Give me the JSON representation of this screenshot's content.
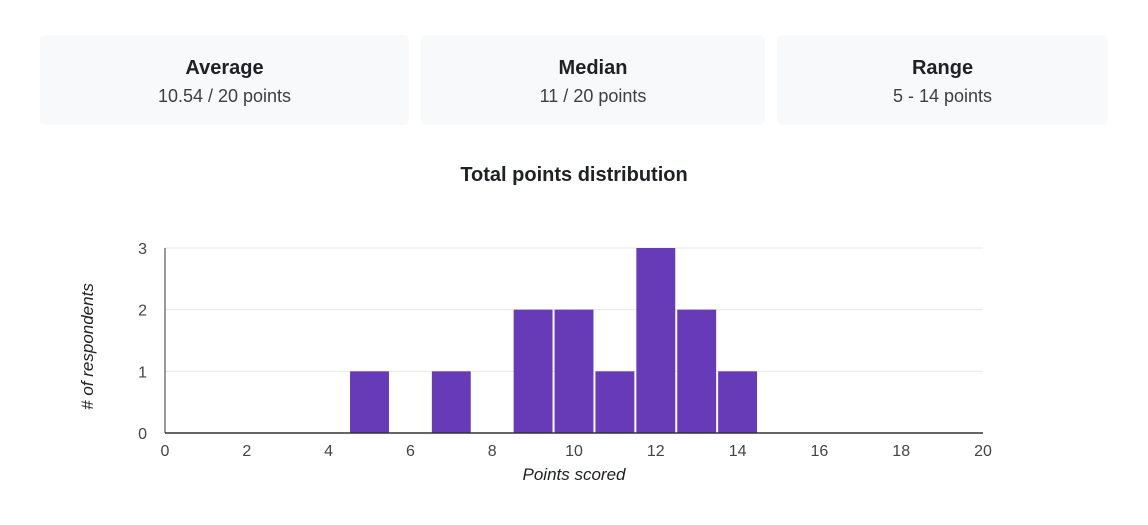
{
  "stats": {
    "average": {
      "label": "Average",
      "value": "10.54 / 20 points"
    },
    "median": {
      "label": "Median",
      "value": "11 / 20 points"
    },
    "range": {
      "label": "Range",
      "value": "5 - 14 points"
    }
  },
  "colors": {
    "bar": "#673ab7",
    "grid": "#e8e8e8",
    "axis": "#333333"
  },
  "chart_data": {
    "type": "bar",
    "title": "Total points distribution",
    "xlabel": "Points scored",
    "ylabel": "# of respondents",
    "xlim": [
      0,
      20
    ],
    "ylim": [
      0,
      3
    ],
    "x_ticks": [
      "0",
      "2",
      "4",
      "6",
      "8",
      "10",
      "12",
      "14",
      "16",
      "18",
      "20"
    ],
    "y_ticks": [
      "0",
      "1",
      "2",
      "3"
    ],
    "categories": [
      5,
      7,
      9,
      10,
      11,
      12,
      13,
      14
    ],
    "values": [
      1,
      1,
      2,
      2,
      1,
      3,
      2,
      1
    ],
    "grid": true,
    "legend": "none"
  }
}
